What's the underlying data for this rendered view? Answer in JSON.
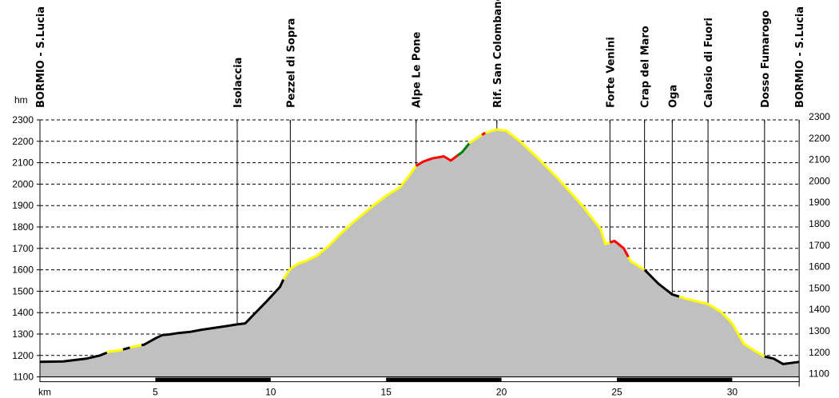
{
  "chart_data": {
    "type": "area",
    "title": "",
    "xlabel": "km",
    "ylabel": "hm",
    "xlim": [
      0,
      32.9
    ],
    "ylim": [
      1100,
      2300
    ],
    "grid": "horizontal dashed",
    "y_ticks": [
      2300,
      2200,
      2100,
      2000,
      1900,
      1800,
      1700,
      1600,
      1500,
      1400,
      1300,
      1200,
      1100
    ],
    "x_ticks": [
      5,
      10,
      15,
      20,
      25,
      30
    ],
    "x_tick_labels": [
      "5",
      "10",
      "15",
      "20",
      "25",
      "30"
    ],
    "fill_color": "#c0c0c0",
    "segment_colors": {
      "black": "#000000",
      "yellow": "#ffff00",
      "red": "#ff0000",
      "green": "#008000"
    },
    "waypoints": [
      {
        "name": "BORMIO - S.Lucia",
        "km": 0.0
      },
      {
        "name": "Isolaccia",
        "km": 8.55
      },
      {
        "name": "Pezzel di Sopra",
        "km": 10.85
      },
      {
        "name": "Alpe Le Pone",
        "km": 16.3
      },
      {
        "name": "Rif. San Colombano",
        "km": 19.8
      },
      {
        "name": "Forte Venini",
        "km": 24.7
      },
      {
        "name": "Crap del Maro",
        "km": 26.2
      },
      {
        "name": "Oga",
        "km": 27.4
      },
      {
        "name": "Calosio di Fuori",
        "km": 28.95
      },
      {
        "name": "Dosso Fumarogo",
        "km": 31.4
      },
      {
        "name": "BORMIO - S.Lucia",
        "km": 32.9
      }
    ],
    "series": [
      {
        "name": "elevation_profile",
        "points": [
          [
            0.0,
            1170
          ],
          [
            1.0,
            1172
          ],
          [
            2.0,
            1185
          ],
          [
            2.6,
            1200
          ],
          [
            3.0,
            1218
          ],
          [
            3.5,
            1225
          ],
          [
            4.0,
            1240
          ],
          [
            4.5,
            1250
          ],
          [
            5.0,
            1280
          ],
          [
            5.3,
            1295
          ],
          [
            5.6,
            1298
          ],
          [
            6.0,
            1305
          ],
          [
            6.5,
            1310
          ],
          [
            7.0,
            1320
          ],
          [
            7.5,
            1328
          ],
          [
            8.0,
            1336
          ],
          [
            8.55,
            1345
          ],
          [
            8.9,
            1350
          ],
          [
            9.3,
            1395
          ],
          [
            9.8,
            1450
          ],
          [
            10.4,
            1520
          ],
          [
            10.55,
            1555
          ],
          [
            10.85,
            1605
          ],
          [
            11.2,
            1630
          ],
          [
            11.5,
            1640
          ],
          [
            12.0,
            1665
          ],
          [
            12.5,
            1710
          ],
          [
            13.0,
            1765
          ],
          [
            13.5,
            1815
          ],
          [
            14.0,
            1860
          ],
          [
            14.5,
            1905
          ],
          [
            15.0,
            1945
          ],
          [
            15.6,
            1985
          ],
          [
            16.0,
            2040
          ],
          [
            16.3,
            2085
          ],
          [
            16.6,
            2105
          ],
          [
            17.0,
            2120
          ],
          [
            17.5,
            2130
          ],
          [
            17.8,
            2110
          ],
          [
            18.3,
            2150
          ],
          [
            18.6,
            2190
          ],
          [
            19.0,
            2220
          ],
          [
            19.3,
            2240
          ],
          [
            19.8,
            2255
          ],
          [
            20.2,
            2250
          ],
          [
            20.8,
            2200
          ],
          [
            21.5,
            2130
          ],
          [
            22.5,
            2020
          ],
          [
            23.5,
            1900
          ],
          [
            24.3,
            1790
          ],
          [
            24.5,
            1720
          ],
          [
            24.9,
            1735
          ],
          [
            25.3,
            1700
          ],
          [
            25.6,
            1640
          ],
          [
            26.2,
            1600
          ],
          [
            26.8,
            1535
          ],
          [
            27.4,
            1485
          ],
          [
            28.0,
            1465
          ],
          [
            28.95,
            1440
          ],
          [
            29.5,
            1405
          ],
          [
            30.0,
            1350
          ],
          [
            30.5,
            1255
          ],
          [
            31.0,
            1220
          ],
          [
            31.4,
            1195
          ],
          [
            31.8,
            1185
          ],
          [
            32.2,
            1160
          ],
          [
            32.9,
            1170
          ]
        ]
      },
      {
        "name": "segments",
        "ranges": [
          {
            "from_km": 0.0,
            "to_km": 2.9,
            "color": "black"
          },
          {
            "from_km": 2.9,
            "to_km": 3.6,
            "color": "yellow"
          },
          {
            "from_km": 3.6,
            "to_km": 3.9,
            "color": "black"
          },
          {
            "from_km": 3.9,
            "to_km": 4.4,
            "color": "yellow"
          },
          {
            "from_km": 4.4,
            "to_km": 10.55,
            "color": "black"
          },
          {
            "from_km": 10.55,
            "to_km": 16.3,
            "color": "yellow"
          },
          {
            "from_km": 16.3,
            "to_km": 18.1,
            "color": "red"
          },
          {
            "from_km": 18.1,
            "to_km": 18.6,
            "color": "green"
          },
          {
            "from_km": 18.6,
            "to_km": 19.15,
            "color": "yellow"
          },
          {
            "from_km": 19.15,
            "to_km": 19.3,
            "color": "red"
          },
          {
            "from_km": 19.3,
            "to_km": 24.7,
            "color": "yellow"
          },
          {
            "from_km": 24.7,
            "to_km": 25.5,
            "color": "red"
          },
          {
            "from_km": 25.5,
            "to_km": 26.2,
            "color": "yellow"
          },
          {
            "from_km": 26.2,
            "to_km": 27.7,
            "color": "black"
          },
          {
            "from_km": 27.7,
            "to_km": 31.4,
            "color": "yellow"
          },
          {
            "from_km": 31.4,
            "to_km": 32.9,
            "color": "black"
          }
        ]
      }
    ]
  },
  "axes": {
    "y_unit": "hm",
    "x_unit": "km",
    "left_ticks": [
      "2300",
      "2200",
      "2100",
      "2000",
      "1900",
      "1800",
      "1700",
      "1600",
      "1500",
      "1400",
      "1300",
      "1200",
      "1100"
    ],
    "right_ticks": [
      "2300",
      "2200",
      "2100",
      "2000",
      "1900",
      "1800",
      "1700",
      "1600",
      "1500",
      "1400",
      "1300",
      "1200",
      "1100"
    ]
  }
}
